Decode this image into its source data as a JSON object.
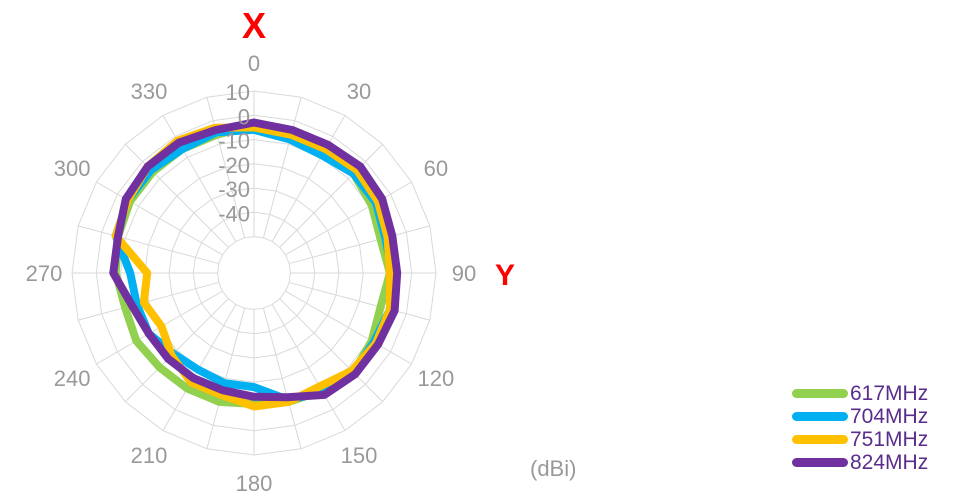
{
  "chart_data": {
    "type": "polar-line",
    "unit_label": "(dBi)",
    "axis_labels": {
      "top": "X",
      "right": "Y"
    },
    "radial_ticks": [
      10,
      0,
      -10,
      -20,
      -30,
      -40
    ],
    "radial_range": [
      -50,
      10
    ],
    "angle_ticks": [
      0,
      30,
      60,
      90,
      120,
      150,
      180,
      210,
      240,
      270,
      300,
      330
    ],
    "angles": [
      0,
      15,
      30,
      45,
      60,
      75,
      90,
      105,
      120,
      135,
      150,
      165,
      180,
      195,
      210,
      225,
      240,
      255,
      270,
      285,
      300,
      315,
      330,
      345
    ],
    "series": [
      {
        "name": "617MHz",
        "color": "#92d050",
        "values": [
          -4,
          -6,
          -6,
          -7,
          -9,
          -11,
          -9,
          -11,
          -9,
          -7,
          -9,
          -10,
          -11,
          -10,
          -10,
          -10,
          -9,
          -10,
          -8,
          -7,
          -6,
          -6,
          -6,
          -6
        ]
      },
      {
        "name": "704MHz",
        "color": "#00b0f0",
        "values": [
          -6,
          -8,
          -9,
          -7,
          -7,
          -9,
          -8,
          -7,
          -8,
          -7,
          -8,
          -11,
          -18,
          -18,
          -19,
          -18,
          -15,
          -15,
          -14,
          -6,
          -5,
          -5,
          -6,
          -5
        ]
      },
      {
        "name": "751MHz",
        "color": "#ffc000",
        "values": [
          -5,
          -6,
          -6,
          -5,
          -6,
          -8,
          -9,
          -7,
          -7,
          -8,
          -11,
          -10,
          -10,
          -13,
          -13,
          -17,
          -21,
          -18,
          -21,
          -6,
          -5,
          -3,
          -2,
          -3
        ]
      },
      {
        "name": "824MHz",
        "color": "#7030a0",
        "values": [
          -3,
          -4,
          -4,
          -3,
          -4,
          -6,
          -6,
          -5,
          -6,
          -6,
          -7,
          -12,
          -14,
          -15,
          -15,
          -15,
          -15,
          -13,
          -7,
          -7,
          -4,
          -3,
          -3,
          -4
        ]
      }
    ]
  }
}
